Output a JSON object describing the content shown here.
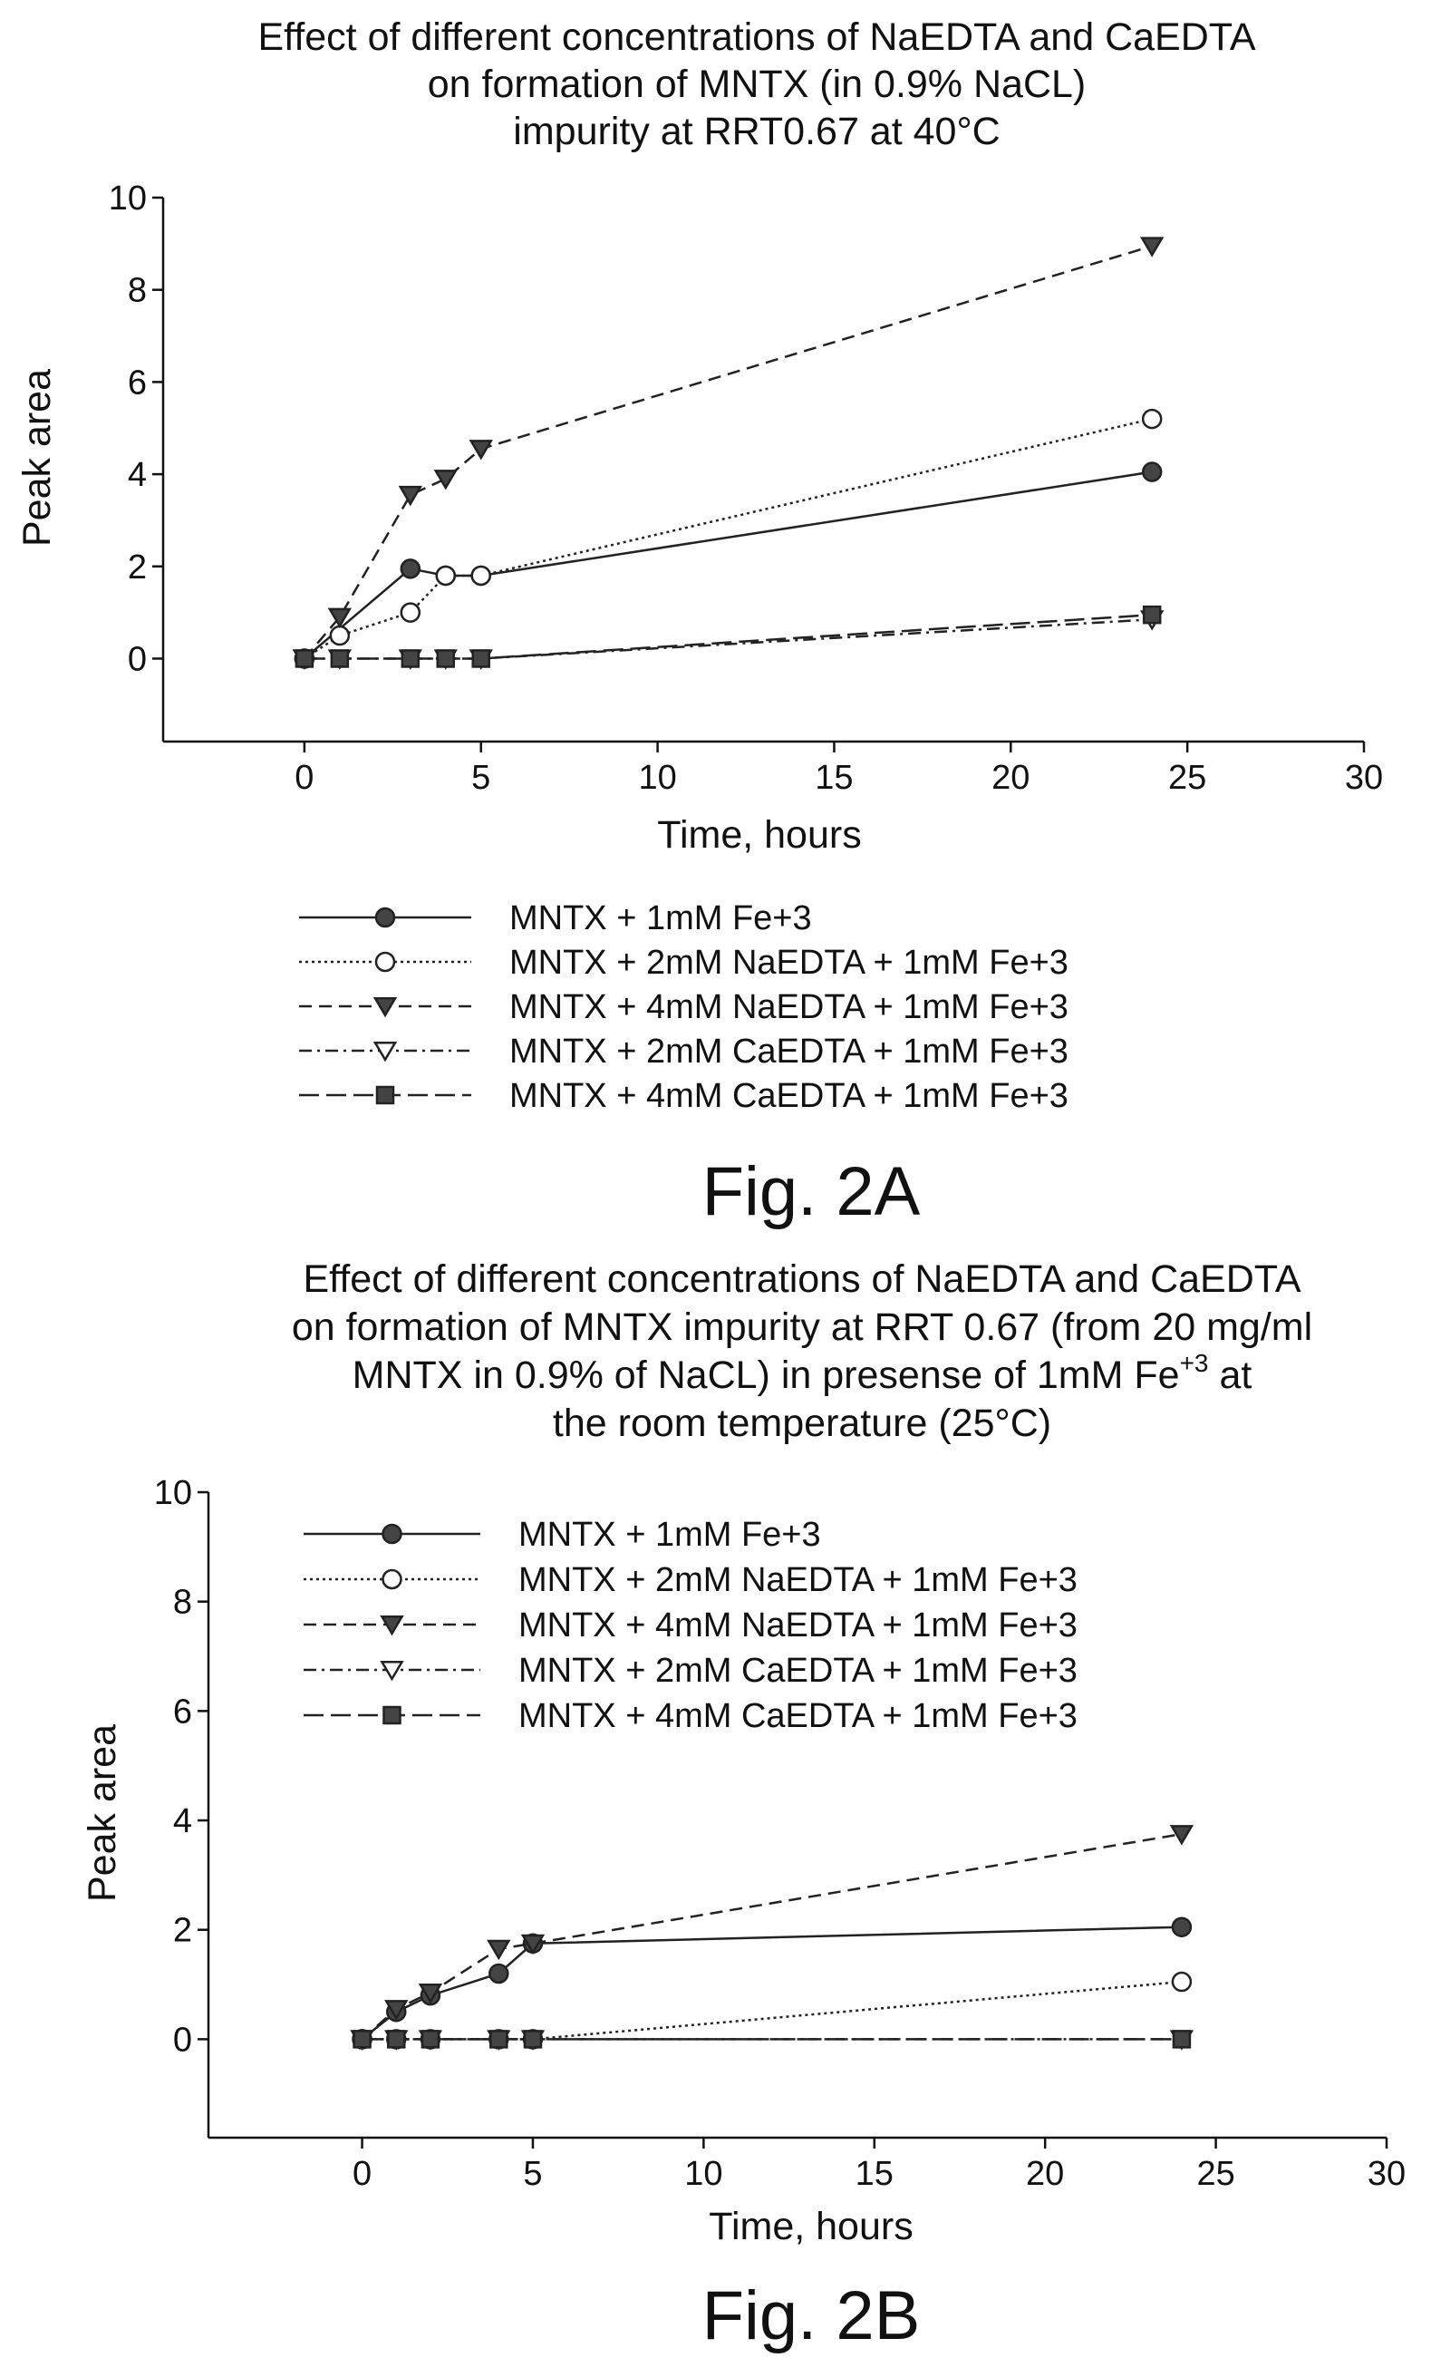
{
  "charts": [
    {
      "title_lines": [
        "Effect of different concentrations of NaEDTA and CaEDTA",
        "on formation of MNTX (in 0.9% NaCL)",
        "impurity at RRT0.67 at 40°C"
      ],
      "figure_label": "Fig. 2A",
      "legend_position": "below"
    },
    {
      "title_lines": [
        "Effect of different concentrations of NaEDTA and CaEDTA",
        "on formation of MNTX impurity at RRT 0.67 (from 20 mg/ml",
        "MNTX in 0.9% of NaCL) in presense of 1mM Fe",
        "the room temperature (25°C)"
      ],
      "title_superscript": "+3",
      "title_superscript_suffix": " at",
      "figure_label": "Fig. 2B",
      "legend_position": "top-left"
    }
  ],
  "chart_data": [
    {
      "type": "line",
      "title": "Effect of different concentrations of NaEDTA and CaEDTA on formation of MNTX (in 0.9% NaCL) impurity at RRT0.67 at 40°C",
      "xlabel": "Time, hours",
      "ylabel": "Peak area",
      "xlim": [
        -4,
        30
      ],
      "ylim": [
        -1.8,
        10
      ],
      "xticks": [
        0,
        5,
        10,
        15,
        20,
        25,
        30
      ],
      "yticks": [
        0,
        2,
        4,
        6,
        8,
        10
      ],
      "grid": false,
      "series": [
        {
          "name": "MNTX + 1mM Fe+3",
          "marker": "filled-circle",
          "dash": "solid",
          "x": [
            0,
            3,
            4,
            5,
            24
          ],
          "y": [
            0,
            1.95,
            1.8,
            1.8,
            4.05
          ]
        },
        {
          "name": "MNTX + 2mM NaEDTA + 1mM Fe+3",
          "marker": "open-circle",
          "dash": "dotted",
          "x": [
            0,
            1,
            3,
            4,
            5,
            24
          ],
          "y": [
            0,
            0.5,
            1.0,
            1.8,
            1.8,
            5.2
          ]
        },
        {
          "name": "MNTX + 4mM NaEDTA + 1mM Fe+3",
          "marker": "filled-triangle-down",
          "dash": "dashed",
          "x": [
            0,
            1,
            3,
            4,
            5,
            24
          ],
          "y": [
            0,
            0.9,
            3.55,
            3.9,
            4.55,
            8.95
          ]
        },
        {
          "name": "MNTX + 2mM CaEDTA + 1mM Fe+3",
          "marker": "open-triangle-down",
          "dash": "dash-dot",
          "x": [
            0,
            1,
            3,
            4,
            5,
            24
          ],
          "y": [
            0,
            0,
            0,
            0,
            0,
            0.85
          ]
        },
        {
          "name": "MNTX + 4mM CaEDTA + 1mM Fe+3",
          "marker": "filled-square",
          "dash": "long-dash",
          "x": [
            0,
            1,
            3,
            4,
            5,
            24
          ],
          "y": [
            0,
            0,
            0,
            0,
            0,
            0.95
          ]
        }
      ]
    },
    {
      "type": "line",
      "title": "Effect of different concentrations of NaEDTA and CaEDTA on formation of MNTX impurity at RRT 0.67 (from 20 mg/ml MNTX in 0.9% of NaCL) in presense of 1mM Fe+3 at the room temperature (25°C)",
      "xlabel": "Time, hours",
      "ylabel": "Peak area",
      "xlim": [
        -4.5,
        30
      ],
      "ylim": [
        -1.8,
        10
      ],
      "xticks": [
        0,
        5,
        10,
        15,
        20,
        25,
        30
      ],
      "yticks": [
        0,
        2,
        4,
        6,
        8,
        10
      ],
      "grid": false,
      "series": [
        {
          "name": "MNTX + 1mM Fe+3",
          "marker": "filled-circle",
          "dash": "solid",
          "x": [
            0,
            1,
            2,
            4,
            5,
            24
          ],
          "y": [
            0,
            0.5,
            0.8,
            1.2,
            1.75,
            2.05
          ]
        },
        {
          "name": "MNTX + 2mM NaEDTA + 1mM Fe+3",
          "marker": "open-circle",
          "dash": "dotted",
          "x": [
            0,
            1,
            2,
            4,
            5,
            24
          ],
          "y": [
            0,
            0,
            0,
            0,
            0,
            1.05
          ]
        },
        {
          "name": "MNTX + 4mM NaEDTA + 1mM Fe+3",
          "marker": "filled-triangle-down",
          "dash": "dashed",
          "x": [
            0,
            1,
            2,
            4,
            5,
            24
          ],
          "y": [
            0,
            0.55,
            0.85,
            1.65,
            1.75,
            3.75
          ]
        },
        {
          "name": "MNTX + 2mM CaEDTA + 1mM Fe+3",
          "marker": "open-triangle-down",
          "dash": "dash-dot",
          "x": [
            0,
            1,
            2,
            4,
            5,
            24
          ],
          "y": [
            0,
            0,
            0,
            0,
            0,
            0
          ]
        },
        {
          "name": "MNTX + 4mM CaEDTA + 1mM Fe+3",
          "marker": "filled-square",
          "dash": "long-dash",
          "x": [
            0,
            1,
            2,
            4,
            5,
            24
          ],
          "y": [
            0,
            0,
            0,
            0,
            0,
            0
          ]
        }
      ]
    }
  ]
}
